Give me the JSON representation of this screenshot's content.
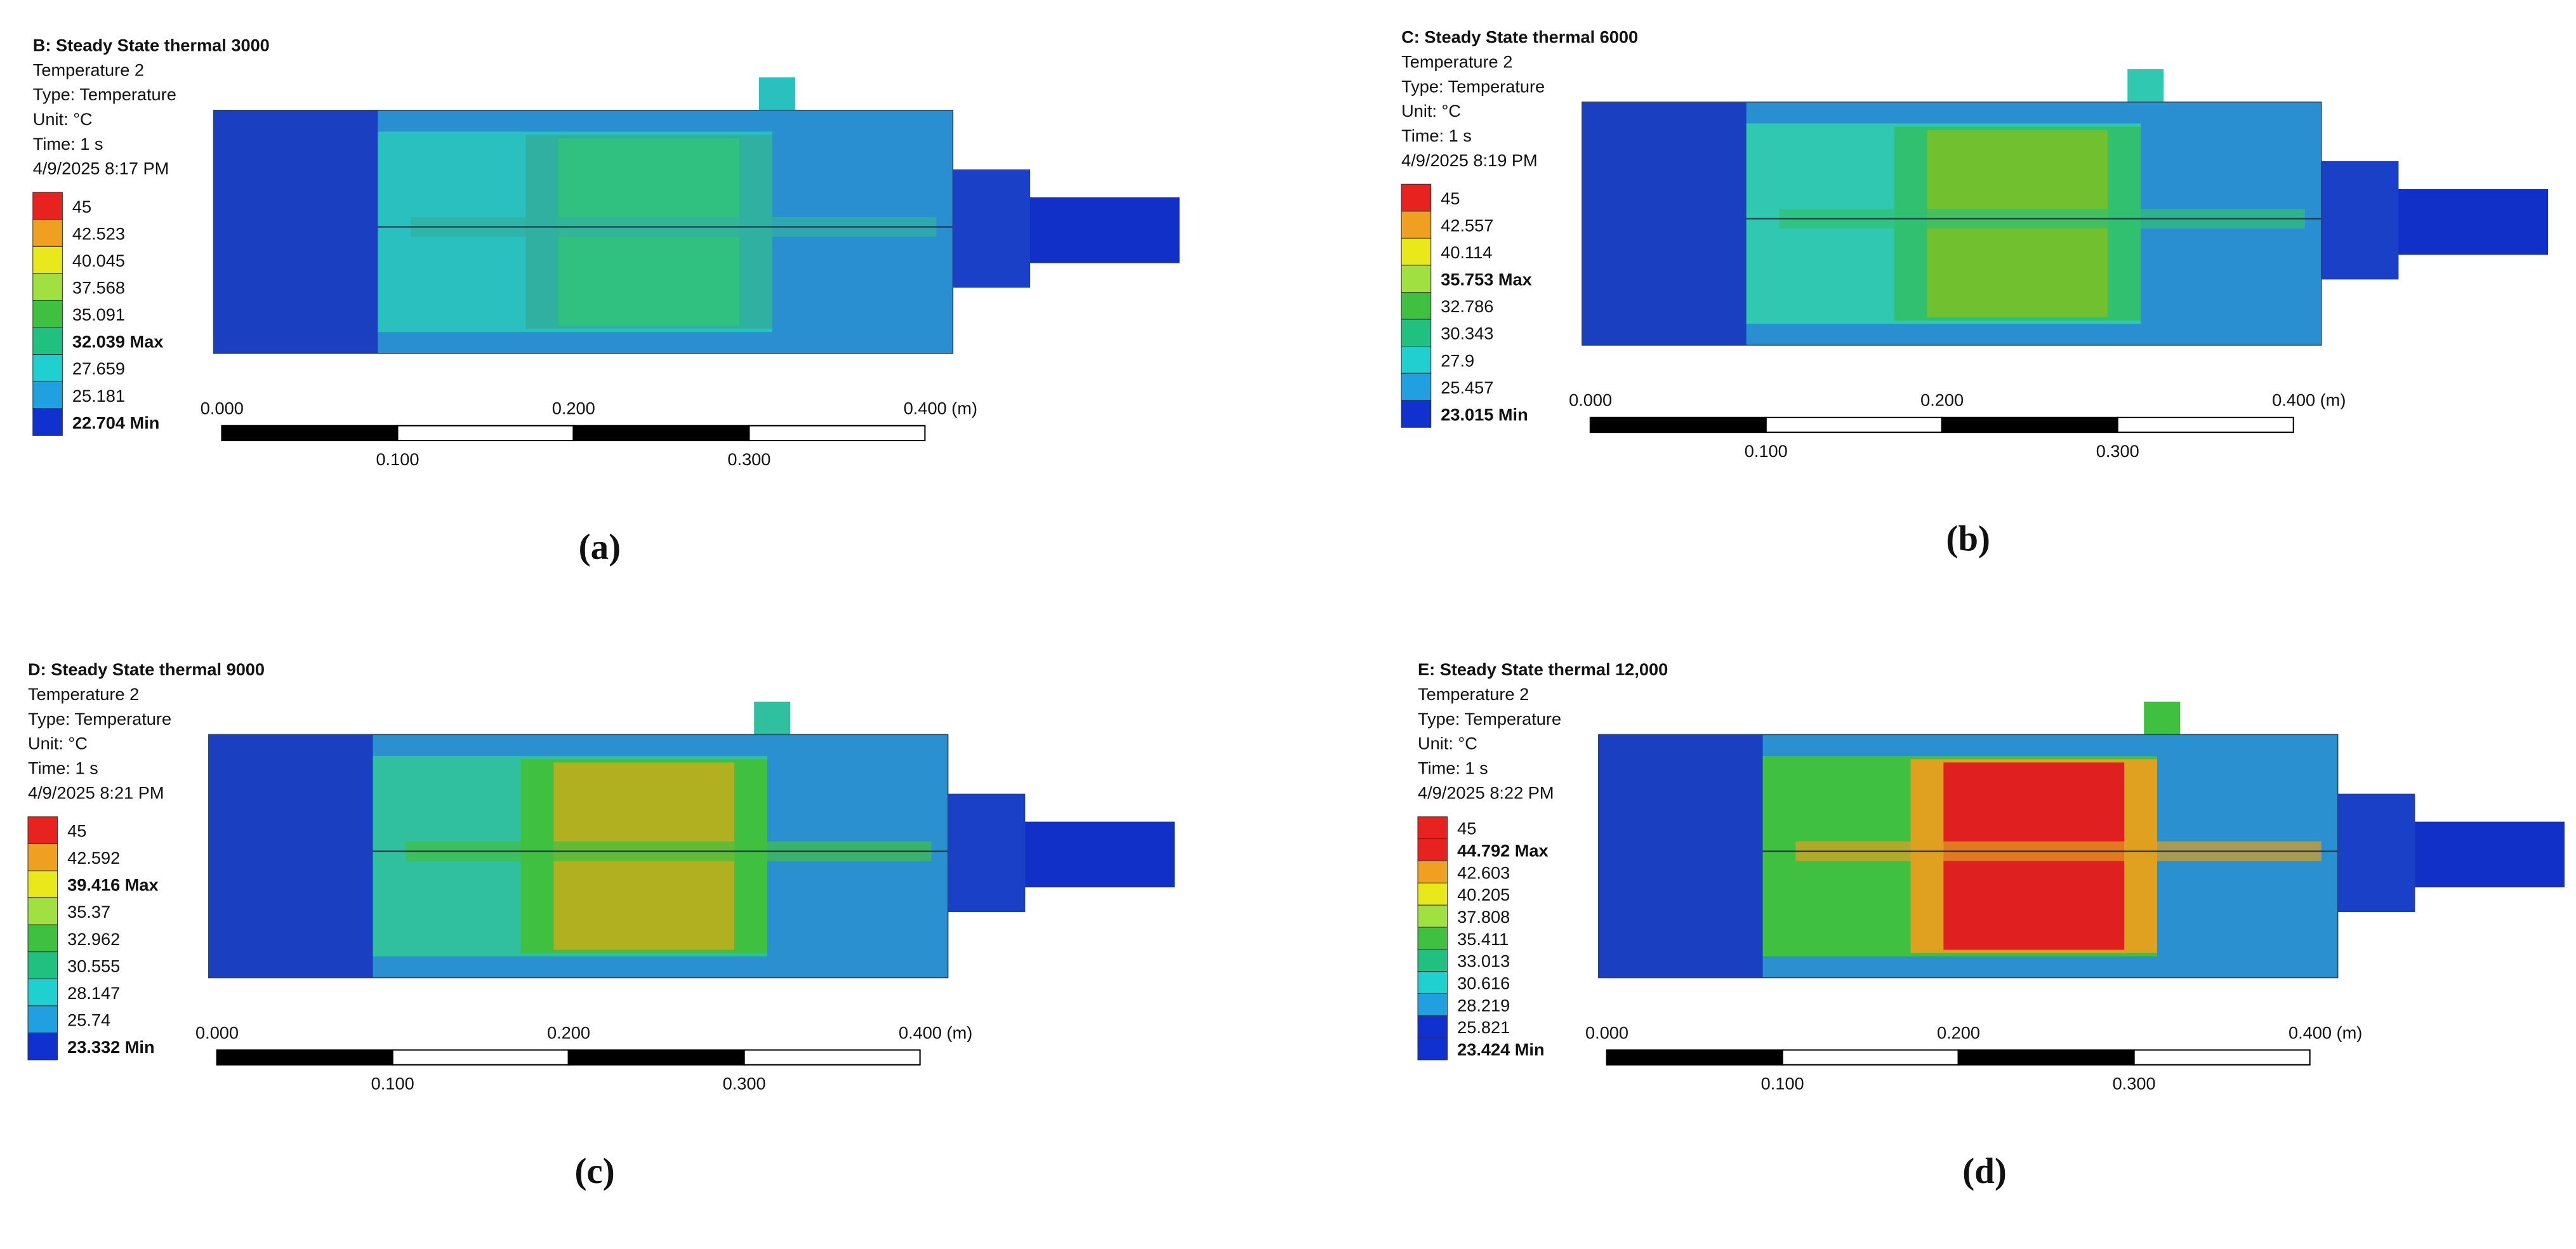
{
  "panels": [
    {
      "title": "B: Steady State thermal  3000",
      "info": [
        "Temperature 2",
        "Type: Temperature",
        "Unit: °C",
        "Time: 1 s",
        "4/9/2025 8:17 PM"
      ],
      "legend": [
        {
          "text": "45"
        },
        {
          "text": "42.523"
        },
        {
          "text": "40.045"
        },
        {
          "text": "37.568"
        },
        {
          "text": "35.091"
        },
        {
          "text": "32.039 Max",
          "bold": true
        },
        {
          "text": "27.659"
        },
        {
          "text": "25.181"
        },
        {
          "text": "22.704 Min",
          "bold": true
        }
      ],
      "scale": {
        "top": [
          "0.000",
          "0.200",
          "0.400 (m)"
        ],
        "bottom": [
          "0.100",
          "0.300"
        ]
      },
      "caption": "(a)"
    },
    {
      "title": "C: Steady State thermal  6000",
      "info": [
        "Temperature 2",
        "Type: Temperature",
        "Unit: °C",
        "Time: 1 s",
        "4/9/2025 8:19 PM"
      ],
      "legend": [
        {
          "text": "45"
        },
        {
          "text": "42.557"
        },
        {
          "text": "40.114"
        },
        {
          "text": "35.753 Max",
          "bold": true
        },
        {
          "text": "32.786"
        },
        {
          "text": "30.343"
        },
        {
          "text": "27.9"
        },
        {
          "text": "25.457"
        },
        {
          "text": "23.015 Min",
          "bold": true
        }
      ],
      "scale": {
        "top": [
          "0.000",
          "0.200",
          "0.400 (m)"
        ],
        "bottom": [
          "0.100",
          "0.300"
        ]
      },
      "caption": "(b)"
    },
    {
      "title": "D: Steady State thermal  9000",
      "info": [
        "Temperature 2",
        "Type: Temperature",
        "Unit: °C",
        "Time: 1 s",
        "4/9/2025 8:21 PM"
      ],
      "legend": [
        {
          "text": "45"
        },
        {
          "text": "42.592"
        },
        {
          "text": "39.416 Max",
          "bold": true
        },
        {
          "text": "35.37"
        },
        {
          "text": "32.962"
        },
        {
          "text": "30.555"
        },
        {
          "text": "28.147"
        },
        {
          "text": "25.74"
        },
        {
          "text": "23.332 Min",
          "bold": true
        }
      ],
      "scale": {
        "top": [
          "0.000",
          "0.200",
          "0.400 (m)"
        ],
        "bottom": [
          "0.100",
          "0.300"
        ]
      },
      "caption": "(c)"
    },
    {
      "title": "E: Steady State thermal  12,000",
      "info": [
        "Temperature 2",
        "Type: Temperature",
        "Unit: °C",
        "Time: 1 s",
        "4/9/2025 8:22 PM"
      ],
      "legend": [
        {
          "text": "45"
        },
        {
          "text": "44.792 Max",
          "bold": true
        },
        {
          "text": "42.603"
        },
        {
          "text": "40.205"
        },
        {
          "text": "37.808"
        },
        {
          "text": "35.411"
        },
        {
          "text": "33.013"
        },
        {
          "text": "30.616"
        },
        {
          "text": "28.219"
        },
        {
          "text": "25.821"
        },
        {
          "text": "23.424 Min",
          "bold": true
        }
      ],
      "scale": {
        "top": [
          "0.000",
          "0.200",
          "0.400 (m)"
        ],
        "bottom": [
          "0.100",
          "0.300"
        ]
      },
      "caption": "(d)"
    }
  ]
}
